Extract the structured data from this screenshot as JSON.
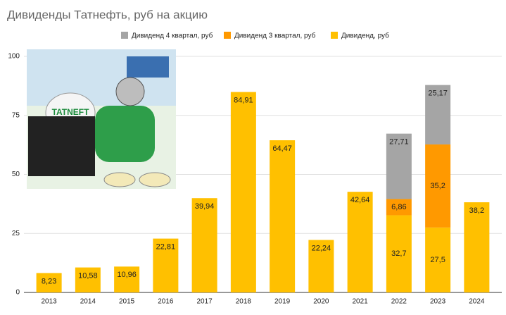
{
  "chart_data": {
    "type": "stacked-bar",
    "title": "Дивиденды Татнефть, руб на акцию",
    "categories": [
      "2013",
      "2014",
      "2015",
      "2016",
      "2017",
      "2018",
      "2019",
      "2020",
      "2021",
      "2022",
      "2023",
      "2024"
    ],
    "series": [
      {
        "name": "Дивиденд, руб",
        "color": "#ffc000",
        "values": [
          8.23,
          10.58,
          10.96,
          22.81,
          39.94,
          84.91,
          64.47,
          22.24,
          42.64,
          32.7,
          27.5,
          38.2
        ],
        "value_labels": [
          "8,23",
          "10,58",
          "10,96",
          "22,81",
          "39,94",
          "84,91",
          "64,47",
          "22,24",
          "42,64",
          "32,7",
          "27,5",
          "38,2"
        ]
      },
      {
        "name": "Дивиденд 3 квартал, руб",
        "color": "#ff9900",
        "values": [
          null,
          null,
          null,
          null,
          null,
          null,
          null,
          null,
          null,
          6.86,
          35.2,
          null
        ],
        "value_labels": [
          null,
          null,
          null,
          null,
          null,
          null,
          null,
          null,
          null,
          "6,86",
          "35,2",
          null
        ]
      },
      {
        "name": "Дивиденд 4 квартал, руб",
        "color": "#a5a5a5",
        "values": [
          null,
          null,
          null,
          null,
          null,
          null,
          null,
          null,
          null,
          27.71,
          25.17,
          null
        ],
        "value_labels": [
          null,
          null,
          null,
          null,
          null,
          null,
          null,
          null,
          null,
          "27,71",
          "25,17",
          null
        ]
      }
    ],
    "ylim": [
      0,
      100
    ],
    "yticks": [
      0,
      25,
      50,
      75,
      100
    ],
    "grid": true
  }
}
